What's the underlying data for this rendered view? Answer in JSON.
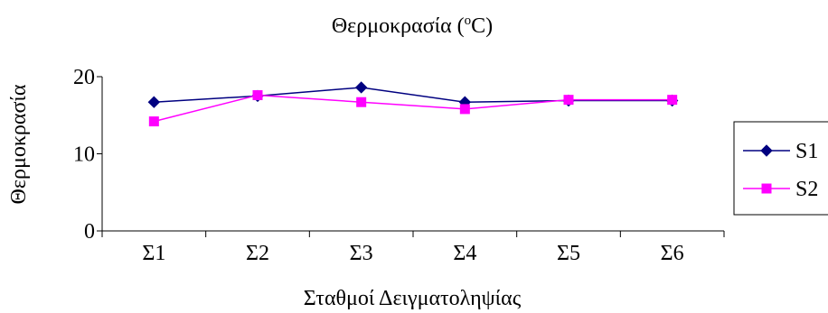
{
  "chart_data": {
    "type": "line",
    "title_main": "Θερμοκρασία (",
    "title_sup": "o",
    "title_end": "C)",
    "xlabel": "Σταθμοί Δειγματοληψίας",
    "ylabel": "Θερμοκρασία",
    "ylim": [
      0,
      20
    ],
    "yticks": [
      0,
      10,
      20
    ],
    "categories": [
      "Σ1",
      "Σ2",
      "Σ3",
      "Σ4",
      "Σ5",
      "Σ6"
    ],
    "series": [
      {
        "name": "S1",
        "color": "#000080",
        "marker": "diamond",
        "values": [
          16.7,
          17.5,
          18.6,
          16.7,
          16.9,
          16.9
        ]
      },
      {
        "name": "S2",
        "color": "#FF00FF",
        "marker": "square",
        "values": [
          14.2,
          17.6,
          16.7,
          15.8,
          17.0,
          17.0
        ]
      }
    ],
    "legend_position": "right",
    "grid": false
  }
}
